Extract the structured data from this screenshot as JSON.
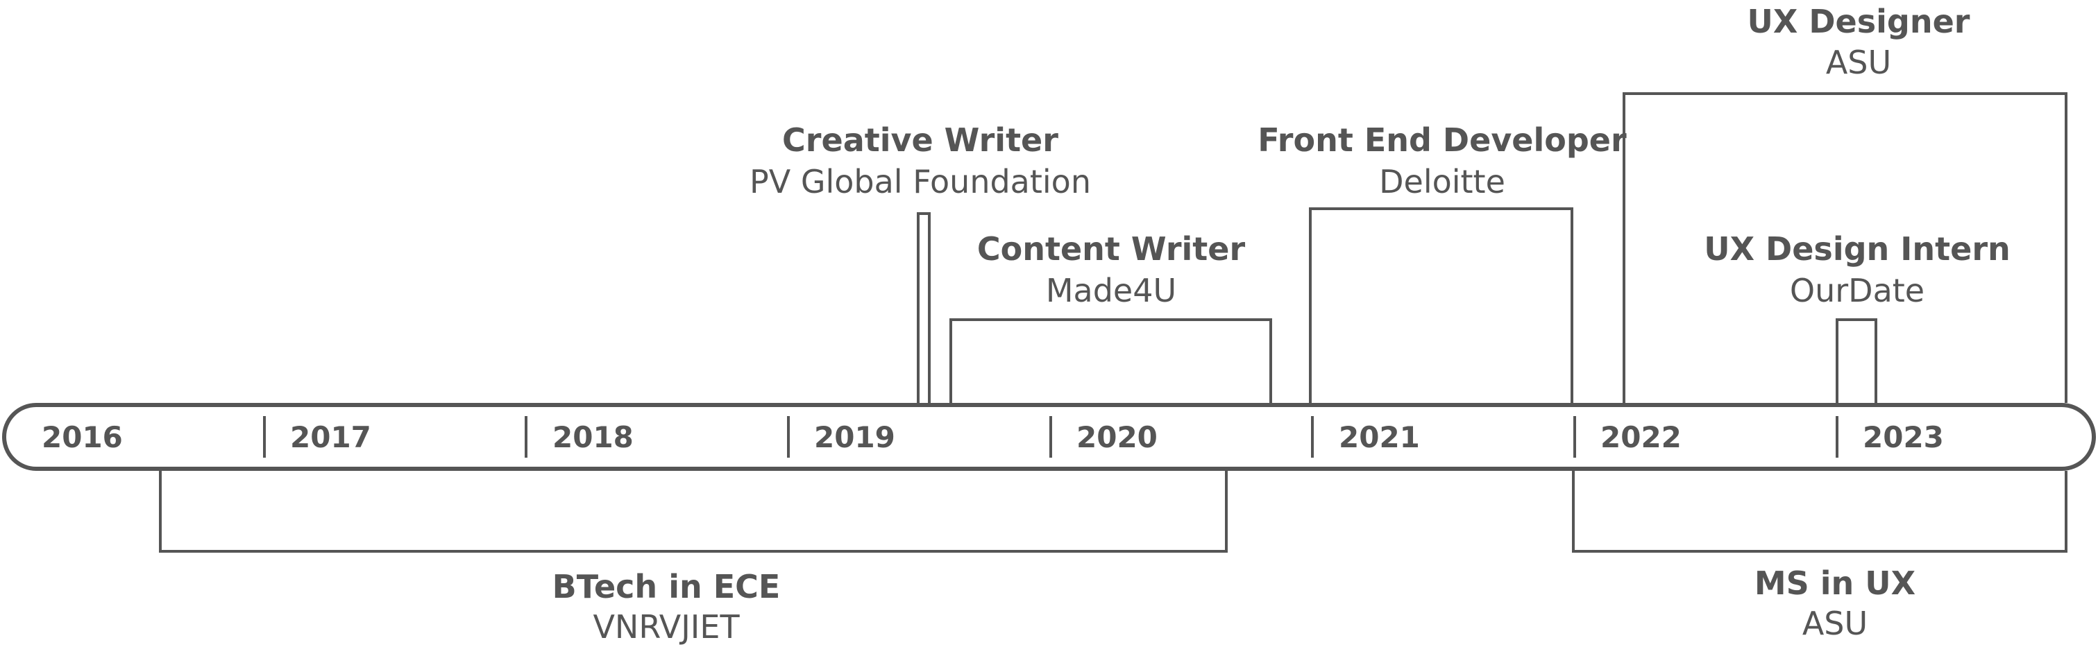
{
  "colors": {
    "ink": "#555555",
    "background": "#ffffff"
  },
  "years": [
    "2016",
    "2017",
    "2018",
    "2019",
    "2020",
    "2021",
    "2022",
    "2023"
  ],
  "above": [
    {
      "title": "Creative Writer",
      "org": "PV Global Foundation",
      "start": "2019.5",
      "end": "2019.55"
    },
    {
      "title": "Content Writer",
      "org": "Made4U",
      "start": "2019.63",
      "end": "2020.85"
    },
    {
      "title": "Front End Developer",
      "org": "Deloitte",
      "start": "2021.0",
      "end": "2021.99"
    },
    {
      "title": "UX Designer",
      "org": "ASU",
      "start": "2022.19",
      "end": "2023.88"
    },
    {
      "title": "UX Design Intern",
      "org": "OurDate",
      "start": "2023.0",
      "end": "2023.15"
    }
  ],
  "below": [
    {
      "title": "BTech in ECE",
      "org": "VNRVJIET",
      "start": "2016.47",
      "end": "2020.55"
    },
    {
      "title": "MS in UX",
      "org": "ASU",
      "start": "2022.0",
      "end": "2023.88"
    }
  ]
}
